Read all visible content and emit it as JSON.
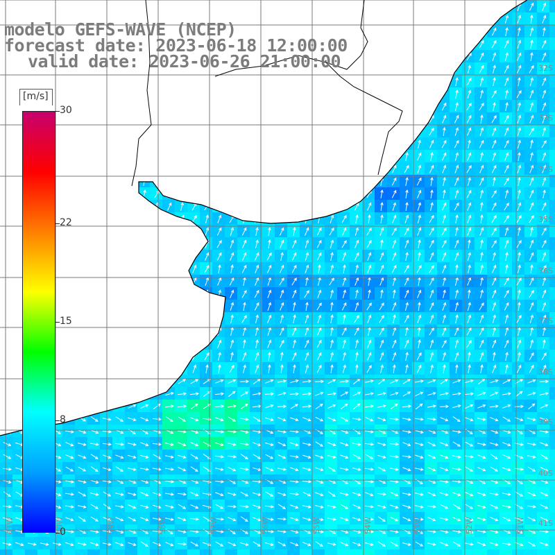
{
  "header": {
    "model": "modelo GEFS-WAVE (NCEP)",
    "forecast": "forecast date: 2023-06-18 12:00:00",
    "valid": "valid date: 2023-06-26 21:00:00"
  },
  "colorbar": {
    "unit": "[m/s]",
    "ticks": [
      "30",
      "22",
      "15",
      "8",
      "0"
    ],
    "tick_values": [
      30,
      22,
      15,
      8,
      0
    ],
    "range": [
      0,
      30
    ],
    "colors": [
      "#0000ff",
      "#00a0ff",
      "#00ffff",
      "#00ff00",
      "#ffff00",
      "#ff7f00",
      "#ff0000",
      "#c8006e"
    ]
  },
  "grid": {
    "bottom_labels": [
      "61W",
      "60W",
      "59W",
      "58W",
      "57W",
      "56W",
      "55W",
      "54W",
      "53W",
      "52W",
      "51W"
    ],
    "right_labels": [
      "32S",
      "33S",
      "34S",
      "35S",
      "36S",
      "37S",
      "38S",
      "39S",
      "40S",
      "41S"
    ]
  },
  "colors": {
    "land": "#ffffff",
    "coast": "#000000",
    "grid": "#7a7a7a",
    "arrow": "#ffffff",
    "header_text": "#7c7c7c"
  }
}
